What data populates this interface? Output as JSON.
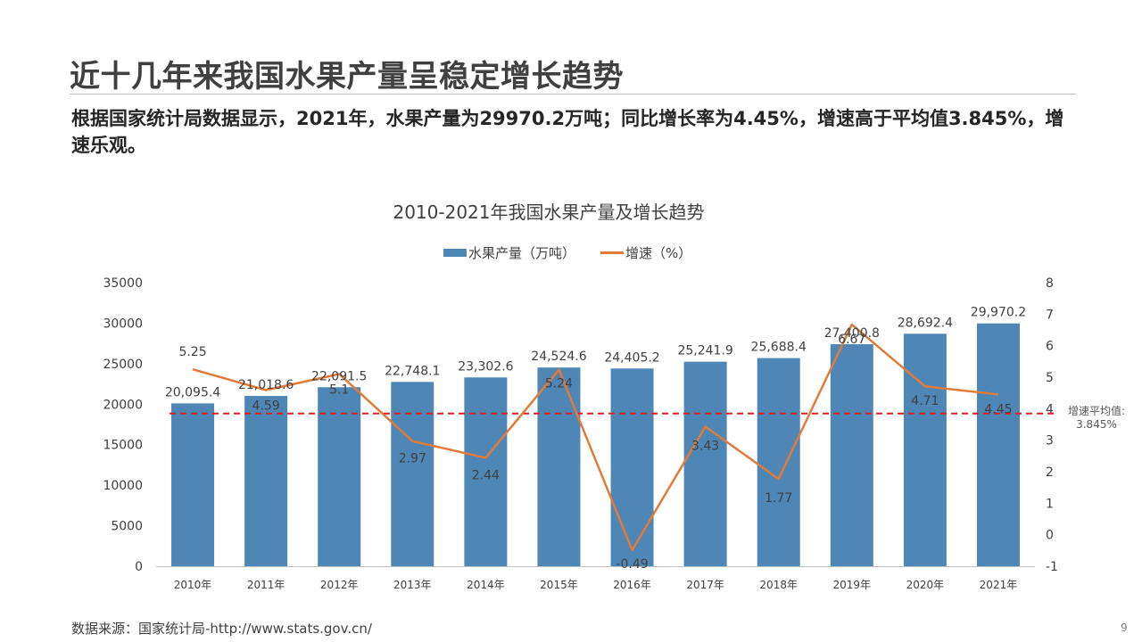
{
  "page": {
    "title": "近十几年来我国水果产量呈稳定增长趋势",
    "subtitle": "根据国家统计局数据显示，2021年，水果产量为29970.2万吨；同比增长率为4.45%，增速高于平均值3.845%，增速乐观。",
    "source": "数据来源：国家统计局-http://www.stats.gov.cn/",
    "page_number": "9"
  },
  "chart_data": {
    "type": "bar",
    "title": "2010-2021年我国水果产量及增长趋势",
    "categories": [
      "2010年",
      "2011年",
      "2012年",
      "2013年",
      "2014年",
      "2015年",
      "2016年",
      "2017年",
      "2018年",
      "2019年",
      "2020年",
      "2021年"
    ],
    "series": [
      {
        "name": "水果产量（万吨）",
        "type": "bar",
        "axis": "left",
        "color": "#4e86b6",
        "values": [
          20095.4,
          21018.6,
          22091.5,
          22748.1,
          23302.6,
          24524.6,
          24405.2,
          25241.9,
          25688.4,
          27400.8,
          28692.4,
          29970.2
        ],
        "labels": [
          "20,095.4",
          "21,018.6",
          "22,091.5",
          "22,748.1",
          "23,302.6",
          "24,524.6",
          "24,405.2",
          "25,241.9",
          "25,688.4",
          "27,400.8",
          "28,692.4",
          "29,970.2"
        ]
      },
      {
        "name": "增速（%）",
        "type": "line",
        "axis": "right",
        "color": "#e07b39",
        "values": [
          5.25,
          4.59,
          5.1,
          2.97,
          2.44,
          5.24,
          -0.49,
          3.43,
          1.77,
          6.67,
          4.71,
          4.45
        ],
        "labels": [
          "5.25",
          "4.59",
          "5.1",
          "2.97",
          "2.44",
          "5.24",
          "-0.49",
          "3.43",
          "1.77",
          "6.67",
          "4.71",
          "4.45"
        ]
      }
    ],
    "y_left": {
      "min": 0,
      "max": 35000,
      "ticks": [
        "35000",
        "30000",
        "25000",
        "20000",
        "15000",
        "10000",
        "5000",
        "0"
      ]
    },
    "y_right": {
      "min": -1,
      "max": 8,
      "ticks": [
        "8",
        "7",
        "6",
        "5",
        "4",
        "3",
        "2",
        "1",
        "0",
        "-1"
      ]
    },
    "average": {
      "value": 3.845,
      "color": "#e02020",
      "label": "增速平均值:",
      "value_label": "3.845%"
    },
    "legend_position": "top-center",
    "grid": false
  }
}
